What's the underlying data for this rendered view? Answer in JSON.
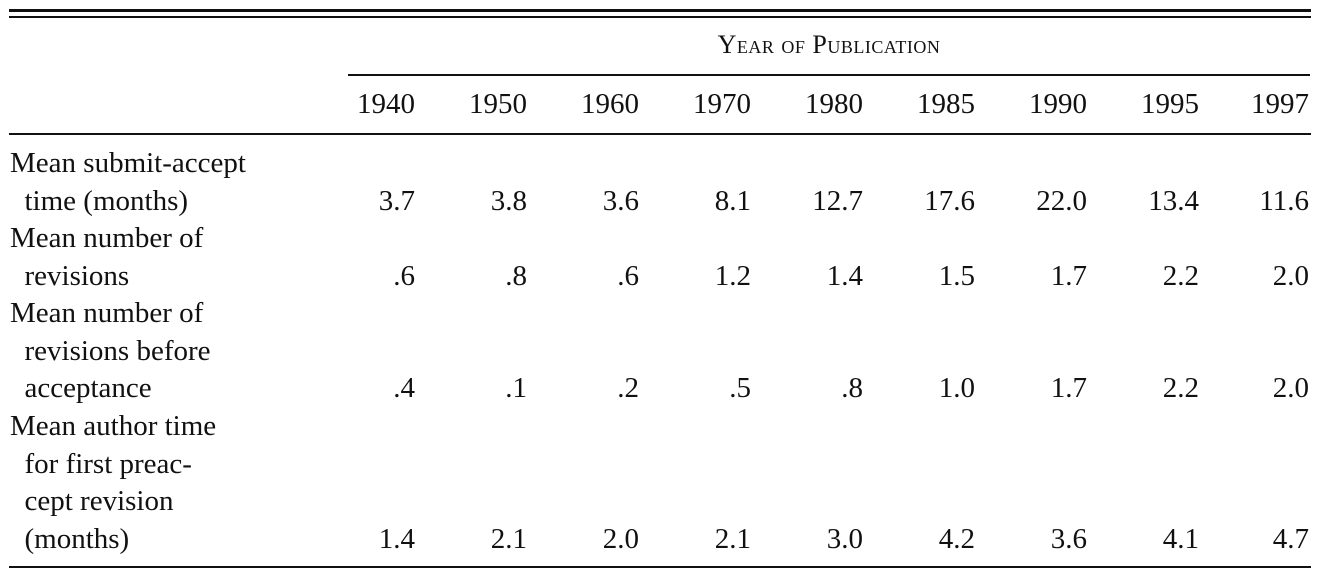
{
  "table": {
    "spanner_header": "Year of Publication",
    "years": [
      "1940",
      "1950",
      "1960",
      "1970",
      "1980",
      "1985",
      "1990",
      "1995",
      "1997"
    ],
    "rows": [
      {
        "label_lines": [
          "Mean submit-accept",
          "  time (months)"
        ],
        "values": [
          "3.7",
          "3.8",
          "3.6",
          "8.1",
          "12.7",
          "17.6",
          "22.0",
          "13.4",
          "11.6"
        ]
      },
      {
        "label_lines": [
          "Mean number of",
          "  revisions"
        ],
        "values": [
          ".6",
          ".8",
          ".6",
          "1.2",
          "1.4",
          "1.5",
          "1.7",
          "2.2",
          "2.0"
        ]
      },
      {
        "label_lines": [
          "Mean number of",
          "  revisions before",
          "  acceptance"
        ],
        "values": [
          ".4",
          ".1",
          ".2",
          ".5",
          ".8",
          "1.0",
          "1.7",
          "2.2",
          "2.0"
        ]
      },
      {
        "label_lines": [
          "Mean author time",
          "  for first preac-",
          "  cept revision",
          "  (months)"
        ],
        "values": [
          "1.4",
          "2.1",
          "2.0",
          "2.1",
          "3.0",
          "4.2",
          "3.6",
          "4.1",
          "4.7"
        ]
      }
    ]
  }
}
